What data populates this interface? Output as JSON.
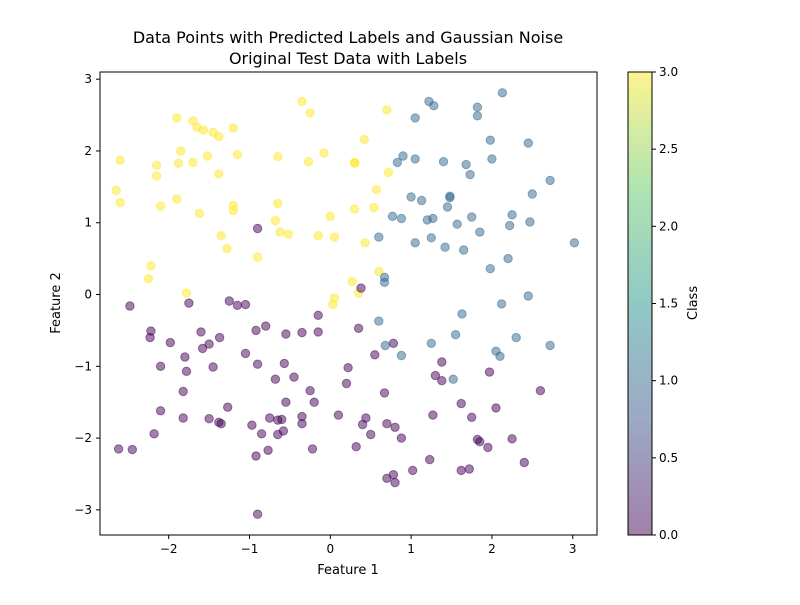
{
  "chart_data": {
    "type": "scatter",
    "title": "Data Points with Predicted Labels and Gaussian Noise",
    "subtitle": "Original Test Data with Labels",
    "xlabel": "Feature 1",
    "ylabel": "Feature 2",
    "xlim": [
      -2.85,
      3.3
    ],
    "ylim": [
      -3.35,
      3.1
    ],
    "xticks": [
      -2,
      -1,
      0,
      1,
      2,
      3
    ],
    "yticks": [
      -3,
      -2,
      -1,
      0,
      1,
      2,
      3
    ],
    "xtick_labels": [
      "−2",
      "−1",
      "0",
      "1",
      "2",
      "3"
    ],
    "ytick_labels": [
      "−3",
      "−2",
      "−1",
      "0",
      "1",
      "2",
      "3"
    ],
    "grid": false,
    "marker_alpha": 0.5,
    "colorbar": {
      "label": "Class",
      "range": [
        0.0,
        3.0
      ],
      "ticks": [
        0.0,
        0.5,
        1.0,
        1.5,
        2.0,
        2.5,
        3.0
      ],
      "tick_labels": [
        "0.0",
        "0.5",
        "1.0",
        "1.5",
        "2.0",
        "2.5",
        "3.0"
      ],
      "colormap": "viridis",
      "stops": [
        "#440154",
        "#3b528b",
        "#21918c",
        "#5ec962",
        "#fde725"
      ]
    },
    "class_colors": {
      "0": "#440154",
      "1": "#31688e",
      "3": "#fde725"
    },
    "series": [
      {
        "class": 3,
        "points": [
          [
            -2.6,
            1.87
          ],
          [
            -2.65,
            1.45
          ],
          [
            -2.6,
            1.28
          ],
          [
            -2.15,
            1.8
          ],
          [
            -2.15,
            1.65
          ],
          [
            -2.1,
            1.23
          ],
          [
            -2.22,
            0.4
          ],
          [
            -2.25,
            0.22
          ],
          [
            -1.9,
            2.46
          ],
          [
            -1.7,
            2.42
          ],
          [
            -1.65,
            2.33
          ],
          [
            -1.57,
            2.29
          ],
          [
            -1.45,
            2.26
          ],
          [
            -1.38,
            2.2
          ],
          [
            -1.2,
            2.32
          ],
          [
            -1.85,
            2.0
          ],
          [
            -1.88,
            1.83
          ],
          [
            -1.7,
            1.84
          ],
          [
            -1.52,
            1.93
          ],
          [
            -1.38,
            1.68
          ],
          [
            -1.15,
            1.95
          ],
          [
            -1.9,
            1.33
          ],
          [
            -1.62,
            1.13
          ],
          [
            -1.2,
            1.24
          ],
          [
            -1.2,
            1.17
          ],
          [
            -1.35,
            0.82
          ],
          [
            -1.28,
            0.64
          ],
          [
            -0.9,
            0.52
          ],
          [
            -1.78,
            0.02
          ],
          [
            -0.35,
            2.69
          ],
          [
            -0.25,
            2.53
          ],
          [
            -0.08,
            1.97
          ],
          [
            -0.65,
            1.92
          ],
          [
            -0.27,
            1.85
          ],
          [
            -0.65,
            1.27
          ],
          [
            -0.68,
            1.03
          ],
          [
            -0.62,
            0.87
          ],
          [
            -0.52,
            0.84
          ],
          [
            0.0,
            1.09
          ],
          [
            -0.15,
            0.82
          ],
          [
            0.05,
            0.8
          ],
          [
            0.7,
            2.57
          ],
          [
            0.42,
            2.16
          ],
          [
            0.3,
            1.84
          ],
          [
            0.3,
            1.83
          ],
          [
            0.72,
            1.7
          ],
          [
            0.57,
            1.46
          ],
          [
            0.3,
            1.19
          ],
          [
            0.54,
            1.21
          ],
          [
            0.43,
            0.72
          ],
          [
            0.6,
            0.32
          ],
          [
            0.27,
            0.18
          ],
          [
            0.35,
            0.02
          ],
          [
            0.05,
            -0.05
          ],
          [
            0.03,
            -0.14
          ]
        ]
      },
      {
        "class": 1,
        "points": [
          [
            1.22,
            2.69
          ],
          [
            1.28,
            2.63
          ],
          [
            1.05,
            2.46
          ],
          [
            1.82,
            2.61
          ],
          [
            1.82,
            2.49
          ],
          [
            2.13,
            2.81
          ],
          [
            0.9,
            1.93
          ],
          [
            0.83,
            1.84
          ],
          [
            1.05,
            1.89
          ],
          [
            1.4,
            1.85
          ],
          [
            1.98,
            2.15
          ],
          [
            2.0,
            1.89
          ],
          [
            1.68,
            1.81
          ],
          [
            1.73,
            1.67
          ],
          [
            2.45,
            2.11
          ],
          [
            0.6,
            0.8
          ],
          [
            0.77,
            1.09
          ],
          [
            0.88,
            1.06
          ],
          [
            1.0,
            1.36
          ],
          [
            1.13,
            1.31
          ],
          [
            1.45,
            1.22
          ],
          [
            1.48,
            1.37
          ],
          [
            1.48,
            1.35
          ],
          [
            1.2,
            1.04
          ],
          [
            1.27,
            1.06
          ],
          [
            1.57,
            0.98
          ],
          [
            1.75,
            1.08
          ],
          [
            1.05,
            0.72
          ],
          [
            1.25,
            0.79
          ],
          [
            1.42,
            0.66
          ],
          [
            1.65,
            0.62
          ],
          [
            1.85,
            0.87
          ],
          [
            2.22,
            0.96
          ],
          [
            2.25,
            1.11
          ],
          [
            2.47,
            1.01
          ],
          [
            2.5,
            1.4
          ],
          [
            2.72,
            1.59
          ],
          [
            3.02,
            0.72
          ],
          [
            1.98,
            0.36
          ],
          [
            2.2,
            0.5
          ],
          [
            2.45,
            -0.02
          ],
          [
            2.12,
            -0.13
          ],
          [
            0.67,
            0.24
          ],
          [
            0.67,
            0.17
          ],
          [
            0.6,
            -0.37
          ],
          [
            1.63,
            -0.27
          ],
          [
            1.55,
            -0.56
          ],
          [
            2.3,
            -0.6
          ],
          [
            1.25,
            -0.68
          ],
          [
            0.68,
            -0.71
          ],
          [
            2.05,
            -0.79
          ],
          [
            2.1,
            -0.86
          ],
          [
            2.72,
            -0.71
          ],
          [
            0.88,
            -0.85
          ],
          [
            1.52,
            -1.18
          ]
        ]
      },
      {
        "class": 0,
        "points": [
          [
            -2.48,
            -0.16
          ],
          [
            -2.22,
            -0.51
          ],
          [
            -2.23,
            -0.6
          ],
          [
            -1.98,
            -0.67
          ],
          [
            -2.1,
            -1.0
          ],
          [
            -1.8,
            -0.87
          ],
          [
            -1.78,
            -1.07
          ],
          [
            -1.75,
            -0.12
          ],
          [
            -1.6,
            -0.52
          ],
          [
            -1.58,
            -0.75
          ],
          [
            -1.5,
            -0.69
          ],
          [
            -1.45,
            -1.01
          ],
          [
            -1.37,
            -0.6
          ],
          [
            -1.25,
            -0.09
          ],
          [
            -1.15,
            -0.15
          ],
          [
            -1.05,
            -0.14
          ],
          [
            -0.9,
            0.92
          ],
          [
            -0.92,
            -0.5
          ],
          [
            -0.8,
            -0.44
          ],
          [
            -0.55,
            -0.55
          ],
          [
            -0.35,
            -0.53
          ],
          [
            -0.15,
            -0.52
          ],
          [
            -0.15,
            -0.29
          ],
          [
            0.35,
            -0.47
          ],
          [
            0.38,
            0.09
          ],
          [
            -1.82,
            -1.35
          ],
          [
            -2.1,
            -1.62
          ],
          [
            -1.82,
            -1.72
          ],
          [
            -1.5,
            -1.73
          ],
          [
            -1.38,
            -1.78
          ],
          [
            -1.35,
            -1.8
          ],
          [
            -1.27,
            -1.57
          ],
          [
            -2.18,
            -1.94
          ],
          [
            -1.05,
            -0.82
          ],
          [
            -0.9,
            -0.97
          ],
          [
            -0.57,
            -0.96
          ],
          [
            -0.68,
            -1.18
          ],
          [
            -0.45,
            -1.15
          ],
          [
            -0.25,
            -1.34
          ],
          [
            -0.2,
            -1.5
          ],
          [
            -0.55,
            -1.5
          ],
          [
            -0.75,
            -1.72
          ],
          [
            -0.65,
            -1.75
          ],
          [
            -0.6,
            -1.74
          ],
          [
            -0.35,
            -1.7
          ],
          [
            -0.35,
            -1.8
          ],
          [
            -0.97,
            -1.82
          ],
          [
            -0.85,
            -1.94
          ],
          [
            -0.65,
            -1.95
          ],
          [
            -0.58,
            -1.9
          ],
          [
            -0.92,
            -2.25
          ],
          [
            -0.77,
            -2.17
          ],
          [
            -0.22,
            -2.15
          ],
          [
            -0.9,
            -3.06
          ],
          [
            -2.62,
            -2.15
          ],
          [
            -2.45,
            -2.16
          ],
          [
            0.22,
            -1.02
          ],
          [
            0.2,
            -1.24
          ],
          [
            0.1,
            -1.68
          ],
          [
            0.4,
            -1.81
          ],
          [
            0.44,
            -1.72
          ],
          [
            0.5,
            -1.95
          ],
          [
            0.55,
            -0.84
          ],
          [
            0.67,
            -1.37
          ],
          [
            0.7,
            -1.8
          ],
          [
            0.8,
            -1.85
          ],
          [
            0.78,
            -0.68
          ],
          [
            0.88,
            -2.0
          ],
          [
            0.32,
            -2.12
          ],
          [
            1.38,
            -0.94
          ],
          [
            1.3,
            -1.13
          ],
          [
            1.38,
            -1.2
          ],
          [
            1.97,
            -1.08
          ],
          [
            1.27,
            -1.68
          ],
          [
            1.62,
            -1.52
          ],
          [
            1.75,
            -1.71
          ],
          [
            1.82,
            -2.02
          ],
          [
            1.85,
            -2.05
          ],
          [
            1.95,
            -2.13
          ],
          [
            2.05,
            -1.58
          ],
          [
            2.25,
            -2.01
          ],
          [
            2.6,
            -1.34
          ],
          [
            2.4,
            -2.34
          ],
          [
            1.62,
            -2.45
          ],
          [
            1.72,
            -2.43
          ],
          [
            1.23,
            -2.3
          ],
          [
            1.02,
            -2.45
          ],
          [
            0.7,
            -2.56
          ],
          [
            0.78,
            -2.51
          ],
          [
            0.8,
            -2.62
          ]
        ]
      }
    ]
  }
}
